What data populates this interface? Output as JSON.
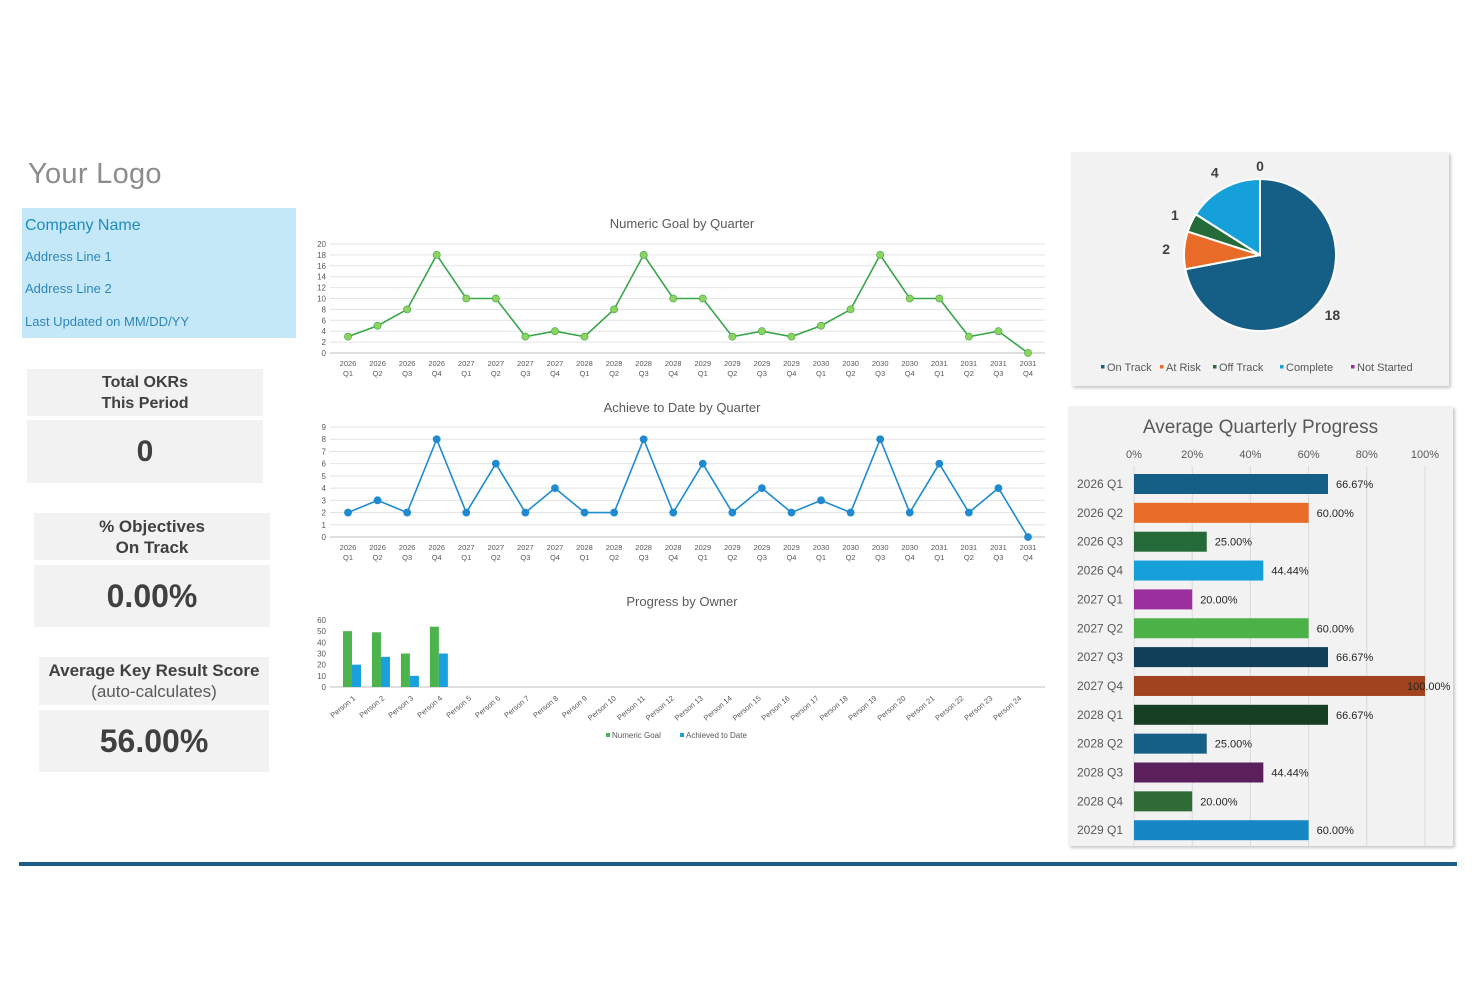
{
  "logo": "Your Logo",
  "company": {
    "name": "Company Name",
    "address1": "Address Line 1",
    "address2": "Address Line 2",
    "updated": "Last Updated on MM/DD/YY"
  },
  "kpis": {
    "total_okrs_line1": "Total OKRs",
    "total_okrs_line2": "This Period",
    "total_okrs_value": "0",
    "objectives_line1": "% Objectives",
    "objectives_line2": "On Track",
    "objectives_value": "0.00%",
    "avg_score_line1": "Average Key Result Score",
    "avg_score_line2": "(auto-calculates)",
    "avg_score_value": "56.00%"
  },
  "colors": {
    "goal_line": "#3aa54a",
    "goal_marker": "#8dd35e",
    "achieve_line": "#1f8ad0",
    "bar_goal": "#4db34d",
    "bar_achieved": "#1aa0dd"
  },
  "chart_data": [
    {
      "type": "line",
      "title": "Numeric Goal by Quarter",
      "ylim": [
        0,
        20
      ],
      "yticks": [
        0,
        2,
        4,
        6,
        8,
        10,
        12,
        14,
        16,
        18,
        20
      ],
      "x": [
        [
          "2026",
          "Q1"
        ],
        [
          "2026",
          "Q2"
        ],
        [
          "2026",
          "Q3"
        ],
        [
          "2026",
          "Q4"
        ],
        [
          "2027",
          "Q1"
        ],
        [
          "2027",
          "Q2"
        ],
        [
          "2027",
          "Q3"
        ],
        [
          "2027",
          "Q4"
        ],
        [
          "2028",
          "Q1"
        ],
        [
          "2028",
          "Q2"
        ],
        [
          "2028",
          "Q3"
        ],
        [
          "2028",
          "Q4"
        ],
        [
          "2029",
          "Q1"
        ],
        [
          "2029",
          "Q2"
        ],
        [
          "2029",
          "Q3"
        ],
        [
          "2029",
          "Q4"
        ],
        [
          "2030",
          "Q1"
        ],
        [
          "2030",
          "Q2"
        ],
        [
          "2030",
          "Q3"
        ],
        [
          "2030",
          "Q4"
        ],
        [
          "2031",
          "Q1"
        ],
        [
          "2031",
          "Q2"
        ],
        [
          "2031",
          "Q3"
        ],
        [
          "2031",
          "Q4"
        ]
      ],
      "values": [
        3,
        5,
        8,
        18,
        10,
        10,
        3,
        4,
        3,
        8,
        18,
        10,
        10,
        3,
        4,
        3,
        5,
        8,
        18,
        10,
        10,
        3,
        4,
        0
      ]
    },
    {
      "type": "line",
      "title": "Achieve to Date by Quarter",
      "ylim": [
        0,
        9
      ],
      "yticks": [
        0,
        1,
        2,
        3,
        4,
        5,
        6,
        7,
        8,
        9
      ],
      "x": [
        [
          "2026",
          "Q1"
        ],
        [
          "2026",
          "Q2"
        ],
        [
          "2026",
          "Q3"
        ],
        [
          "2026",
          "Q4"
        ],
        [
          "2027",
          "Q1"
        ],
        [
          "2027",
          "Q2"
        ],
        [
          "2027",
          "Q3"
        ],
        [
          "2027",
          "Q4"
        ],
        [
          "2028",
          "Q1"
        ],
        [
          "2028",
          "Q2"
        ],
        [
          "2028",
          "Q3"
        ],
        [
          "2028",
          "Q4"
        ],
        [
          "2029",
          "Q1"
        ],
        [
          "2029",
          "Q2"
        ],
        [
          "2029",
          "Q3"
        ],
        [
          "2029",
          "Q4"
        ],
        [
          "2030",
          "Q1"
        ],
        [
          "2030",
          "Q2"
        ],
        [
          "2030",
          "Q3"
        ],
        [
          "2030",
          "Q4"
        ],
        [
          "2031",
          "Q1"
        ],
        [
          "2031",
          "Q2"
        ],
        [
          "2031",
          "Q3"
        ],
        [
          "2031",
          "Q4"
        ]
      ],
      "values": [
        2,
        3,
        2,
        8,
        2,
        6,
        2,
        4,
        2,
        2,
        8,
        2,
        6,
        2,
        4,
        2,
        3,
        2,
        8,
        2,
        6,
        2,
        4,
        0
      ]
    },
    {
      "type": "bar",
      "title": "Progress by Owner",
      "ylim": [
        0,
        60
      ],
      "yticks": [
        0,
        10,
        20,
        30,
        40,
        50,
        60
      ],
      "categories": [
        "Person 1",
        "Person 2",
        "Person 3",
        "Person 4",
        "Person 5",
        "Person 6",
        "Person 7",
        "Person 8",
        "Person 9",
        "Person 10",
        "Person 11",
        "Person 12",
        "Person 13",
        "Person 14",
        "Person 15",
        "Person 16",
        "Person 17",
        "Person 18",
        "Person 19",
        "Person 20",
        "Person 21",
        "Person 22",
        "Person 23",
        "Person 24"
      ],
      "series": [
        {
          "name": "Numeric Goal",
          "values": [
            50,
            49,
            30,
            54,
            0,
            0,
            0,
            0,
            0,
            0,
            0,
            0,
            0,
            0,
            0,
            0,
            0,
            0,
            0,
            0,
            0,
            0,
            0,
            0
          ]
        },
        {
          "name": "Achieved to Date",
          "values": [
            20,
            27,
            10,
            30,
            0,
            0,
            0,
            0,
            0,
            0,
            0,
            0,
            0,
            0,
            0,
            0,
            0,
            0,
            0,
            0,
            0,
            0,
            0,
            0
          ]
        }
      ],
      "legend": "bottom"
    },
    {
      "type": "pie",
      "categories": [
        "On Track",
        "At Risk",
        "Off Track",
        "Complete",
        "Not Started"
      ],
      "values": [
        18,
        2,
        1,
        4,
        0
      ],
      "colors": [
        "#155f86",
        "#e96b28",
        "#256b3a",
        "#16a0d9",
        "#9b2f9e"
      ],
      "legend": "bottom"
    },
    {
      "type": "bar",
      "orientation": "horizontal",
      "title": "Average Quarterly Progress",
      "xlim": [
        0,
        100
      ],
      "xticks": [
        "0%",
        "20%",
        "40%",
        "60%",
        "80%",
        "100%"
      ],
      "categories": [
        "2026 Q1",
        "2026 Q2",
        "2026 Q3",
        "2026 Q4",
        "2027 Q1",
        "2027 Q2",
        "2027 Q3",
        "2027 Q4",
        "2028 Q1",
        "2028 Q2",
        "2028 Q3",
        "2028 Q4",
        "2029 Q1"
      ],
      "values": [
        66.67,
        60.0,
        25.0,
        44.44,
        20.0,
        60.0,
        66.67,
        100.0,
        66.67,
        25.0,
        44.44,
        20.0,
        60.0
      ],
      "labels": [
        "66.67%",
        "60.00%",
        "25.00%",
        "44.44%",
        "20.00%",
        "60.00%",
        "66.67%",
        "100.00%",
        "66.67%",
        "25.00%",
        "44.44%",
        "20.00%",
        "60.00%"
      ],
      "colors": [
        "#155f86",
        "#e96b28",
        "#256b3a",
        "#16a0d9",
        "#9b2f9e",
        "#4cb147",
        "#113e58",
        "#a2431f",
        "#173f23",
        "#155f86",
        "#5b1f5c",
        "#2f6b37",
        "#1786c4"
      ]
    }
  ]
}
